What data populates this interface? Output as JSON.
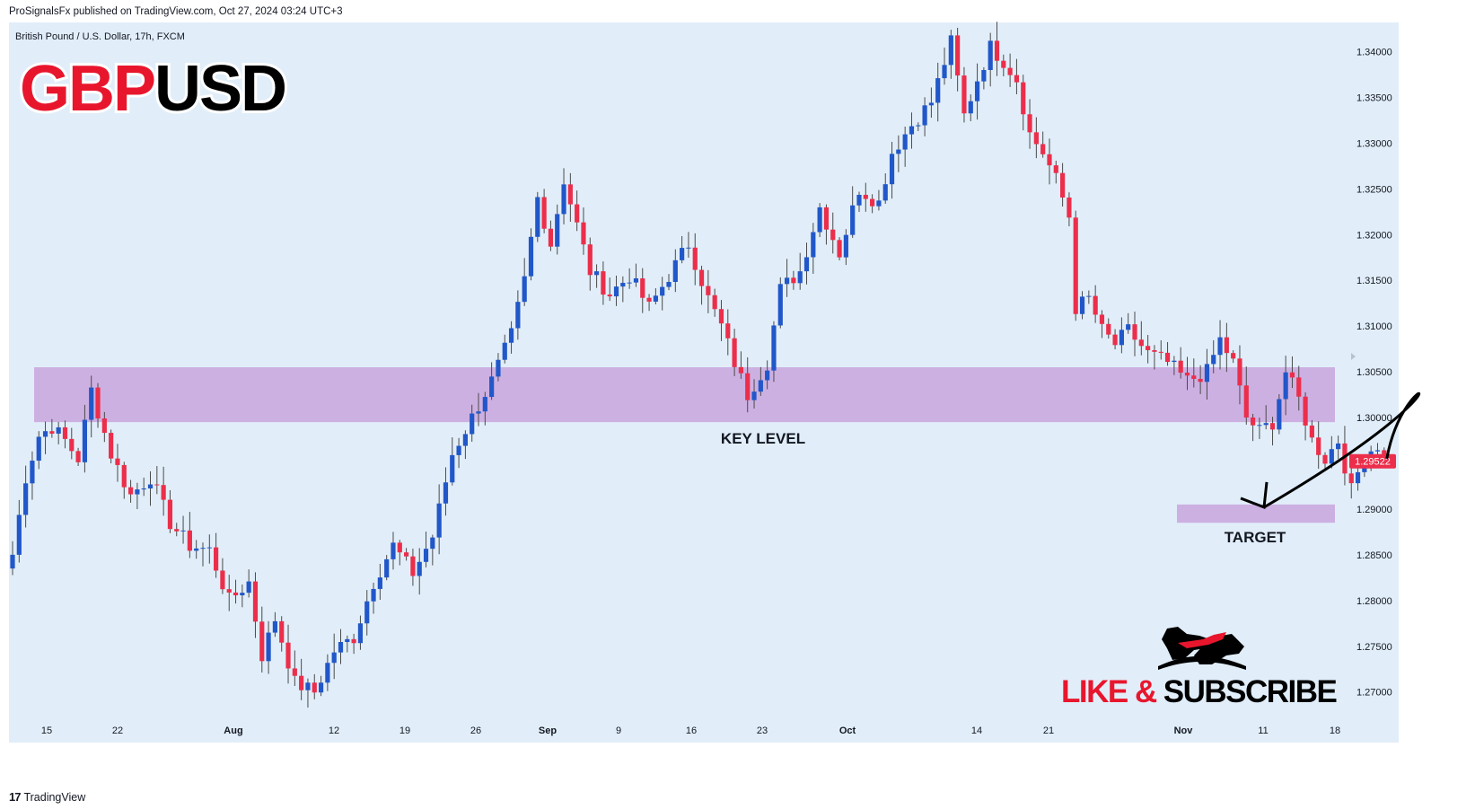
{
  "header": {
    "publisher_line": "ProSignalsFx published on TradingView.com, Oct 27, 2024 03:24 UTC+3"
  },
  "footer": {
    "brand": "TradingView",
    "logo_glyph": "17"
  },
  "symbol": {
    "description": "British Pound / U.S. Dollar, 17h, FXCM",
    "title_part1": "GBP",
    "title_part2": "USD",
    "title_part1_color": "#e8162d",
    "title_part2_color": "#000000"
  },
  "annotations": {
    "key_level_label": "KEY LEVEL",
    "target_label": "TARGET",
    "zone_color": "#cdb0e2",
    "cta_part1": "LIKE &",
    "cta_part2": "SUBSCRIBE",
    "cta_part1_color": "#e8162d",
    "cta_part2_color": "#000000",
    "logo_icon": "bull-bear-logo-icon"
  },
  "colors": {
    "background": "#ffffff",
    "plot_background": "#e1eef9",
    "bull": "#2157c9",
    "bear": "#ec2e4b",
    "wick": "#4a4a4a",
    "price_label_bg": "#ec2e4b"
  },
  "chart_data": {
    "type": "candlestick",
    "symbol": "GBPUSD",
    "timeframe": "17h",
    "ylim": [
      1.2675,
      1.3428
    ],
    "y_ticks": [
      "1.34000",
      "1.33500",
      "1.33000",
      "1.32500",
      "1.32000",
      "1.31500",
      "1.31000",
      "1.30500",
      "1.30000",
      "1.29500",
      "1.29000",
      "1.28500",
      "1.28000",
      "1.27500",
      "1.27000"
    ],
    "x_ticks": [
      "15",
      "22",
      "Aug",
      "12",
      "19",
      "26",
      "Sep",
      "9",
      "16",
      "23",
      "Oct",
      "14",
      "21",
      "Nov",
      "11",
      "18"
    ],
    "current_price": 1.29522,
    "current_price_label": "1.29522",
    "key_level_zone": [
      1.2995,
      1.3055
    ],
    "target_zone": [
      1.2885,
      1.2905
    ],
    "projected_path": {
      "from": 1.2955,
      "peak": 1.301,
      "to": 1.29,
      "arrow": "down"
    },
    "waypoints": [
      [
        0,
        1.285
      ],
      [
        2,
        1.2935
      ],
      [
        4,
        1.298
      ],
      [
        6,
        1.299
      ],
      [
        8,
        1.2975
      ],
      [
        10,
        1.2955
      ],
      [
        12,
        1.303
      ],
      [
        15,
        1.296
      ],
      [
        18,
        1.2915
      ],
      [
        21,
        1.2935
      ],
      [
        24,
        1.2885
      ],
      [
        27,
        1.286
      ],
      [
        30,
        1.2855
      ],
      [
        33,
        1.28
      ],
      [
        36,
        1.282
      ],
      [
        38,
        1.274
      ],
      [
        40,
        1.278
      ],
      [
        43,
        1.271
      ],
      [
        46,
        1.27
      ],
      [
        49,
        1.2745
      ],
      [
        52,
        1.276
      ],
      [
        55,
        1.282
      ],
      [
        58,
        1.286
      ],
      [
        61,
        1.283
      ],
      [
        64,
        1.287
      ],
      [
        67,
        1.296
      ],
      [
        70,
        1.3
      ],
      [
        73,
        1.304
      ],
      [
        76,
        1.309
      ],
      [
        78,
        1.315
      ],
      [
        80,
        1.324
      ],
      [
        82,
        1.319
      ],
      [
        84,
        1.326
      ],
      [
        86,
        1.321
      ],
      [
        88,
        1.316
      ],
      [
        91,
        1.3135
      ],
      [
        94,
        1.3155
      ],
      [
        97,
        1.312
      ],
      [
        100,
        1.3155
      ],
      [
        103,
        1.319
      ],
      [
        106,
        1.313
      ],
      [
        108,
        1.31
      ],
      [
        110,
        1.306
      ],
      [
        112,
        1.3025
      ],
      [
        115,
        1.306
      ],
      [
        117,
        1.314
      ],
      [
        120,
        1.316
      ],
      [
        123,
        1.323
      ],
      [
        126,
        1.318
      ],
      [
        129,
        1.325
      ],
      [
        132,
        1.3235
      ],
      [
        134,
        1.329
      ],
      [
        137,
        1.332
      ],
      [
        140,
        1.3345
      ],
      [
        143,
        1.341
      ],
      [
        145,
        1.333
      ],
      [
        147,
        1.337
      ],
      [
        149,
        1.3405
      ],
      [
        151,
        1.339
      ],
      [
        153,
        1.337
      ],
      [
        155,
        1.331
      ],
      [
        157,
        1.329
      ],
      [
        159,
        1.326
      ],
      [
        161,
        1.322
      ],
      [
        162,
        1.312
      ],
      [
        164,
        1.313
      ],
      [
        166,
        1.3095
      ],
      [
        168,
        1.308
      ],
      [
        170,
        1.3095
      ],
      [
        173,
        1.307
      ],
      [
        176,
        1.306
      ],
      [
        179,
        1.304
      ],
      [
        182,
        1.305
      ],
      [
        184,
        1.3085
      ],
      [
        186,
        1.306
      ],
      [
        188,
        1.3
      ],
      [
        190,
        1.2985
      ],
      [
        192,
        1.2995
      ],
      [
        194,
        1.305
      ],
      [
        196,
        1.302
      ],
      [
        198,
        1.2975
      ],
      [
        200,
        1.2955
      ],
      [
        202,
        1.2975
      ],
      [
        204,
        1.292
      ],
      [
        206,
        1.296
      ],
      [
        208,
        1.297
      ],
      [
        209,
        1.2952
      ]
    ]
  }
}
